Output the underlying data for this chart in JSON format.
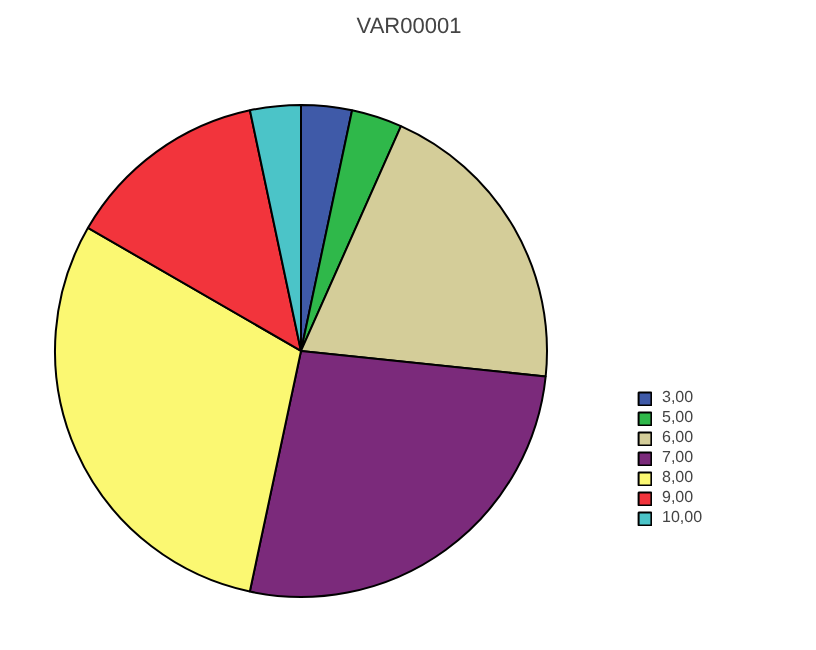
{
  "chart_data": {
    "type": "pie",
    "title": "VAR00001",
    "categories": [
      "3,00",
      "5,00",
      "6,00",
      "7,00",
      "8,00",
      "9,00",
      "10,00"
    ],
    "values": [
      3.33,
      3.33,
      20,
      26.67,
      30,
      13.33,
      3.33
    ],
    "colors": [
      "#3f5aa8",
      "#2fb84a",
      "#d4cd99",
      "#7b2a7b",
      "#fbf872",
      "#f2343c",
      "#4bc4c8"
    ],
    "legend": "right"
  }
}
